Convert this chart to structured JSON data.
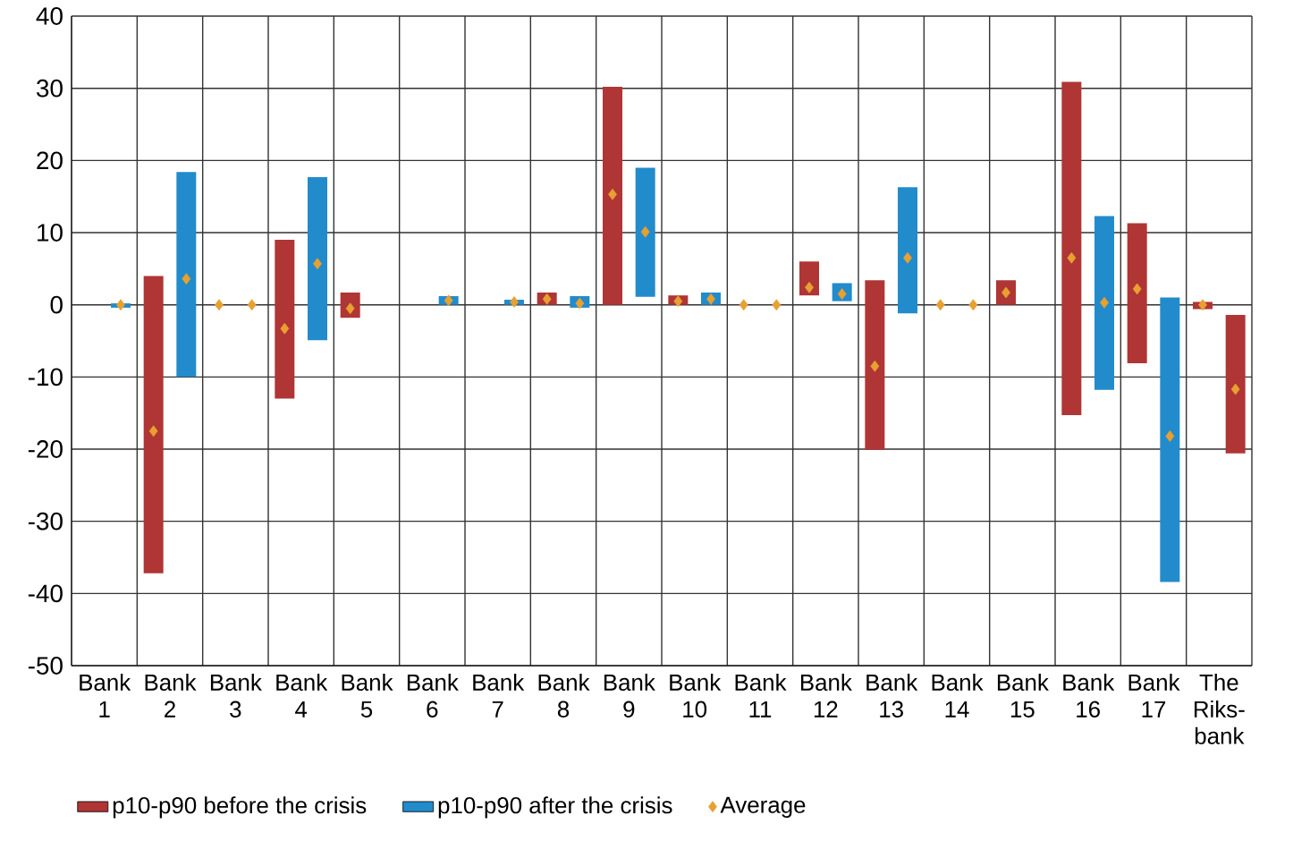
{
  "chart_data": {
    "type": "bar",
    "categories": [
      "Bank 1",
      "Bank 2",
      "Bank 3",
      "Bank 4",
      "Bank 5",
      "Bank 6",
      "Bank 7",
      "Bank 8",
      "Bank 9",
      "Bank 10",
      "Bank 11",
      "Bank 12",
      "Bank 13",
      "Bank 14",
      "Bank 15",
      "Bank 16",
      "Bank 17",
      "The Riks-bank"
    ],
    "series": [
      {
        "name": "p10-p90 before the crisis",
        "color": "#b03535",
        "base": [
          null,
          -37.2,
          null,
          -13.0,
          -1.8,
          null,
          null,
          0,
          0,
          0,
          null,
          1.3,
          -20.1,
          null,
          0,
          -15.3,
          -8.1,
          -0.6
        ],
        "values": [
          null,
          41.2,
          null,
          22.0,
          3.5,
          null,
          null,
          1.7,
          30.2,
          1.3,
          null,
          4.7,
          23.5,
          null,
          3.4,
          46.2,
          19.4,
          1.0
        ]
      },
      {
        "name": "p10-p90 after the crisis",
        "color": "#228bcb",
        "colors": [
          "#228bcb",
          "#228bcb",
          "#228bcb",
          "#228bcb",
          "#228bcb",
          "#228bcb",
          "#228bcb",
          "#228bcb",
          "#228bcb",
          "#228bcb",
          "#228bcb",
          "#228bcb",
          "#228bcb",
          "#228bcb",
          "#228bcb",
          "#228bcb",
          "#228bcb",
          "#b03535"
        ],
        "base": [
          -0.4,
          -10,
          null,
          -4.9,
          null,
          0,
          0,
          -0.4,
          1.1,
          0,
          null,
          0.5,
          -1.2,
          null,
          null,
          -11.8,
          -38.4,
          -20.6
        ],
        "values": [
          0.6,
          28.4,
          null,
          22.6,
          null,
          1.2,
          0.7,
          1.6,
          17.9,
          1.7,
          null,
          2.5,
          17.5,
          null,
          null,
          24.1,
          39.4,
          19.2
        ]
      },
      {
        "name": "Average",
        "type": "scatter",
        "color": "#e8a030",
        "values": [
          null,
          -17.5,
          0,
          -3.3,
          -0.5,
          null,
          null,
          0.8,
          15.3,
          0.5,
          0,
          2.4,
          -8.5,
          0,
          1.7,
          6.5,
          2.2,
          0
        ]
      },
      {
        "type": "scatter",
        "color": "#e8a030",
        "values": [
          0,
          3.6,
          0,
          5.7,
          null,
          0.6,
          0.4,
          0.2,
          10.1,
          0.8,
          0,
          1.5,
          6.5,
          0,
          null,
          0.3,
          -18.2,
          -11.7
        ]
      }
    ],
    "ylim": [
      -50,
      40
    ],
    "yticks": [
      -50,
      -40,
      -30,
      -20,
      -10,
      0,
      10,
      20,
      30,
      40
    ],
    "grid": true,
    "legend": "bottom",
    "marker": "diamond"
  }
}
